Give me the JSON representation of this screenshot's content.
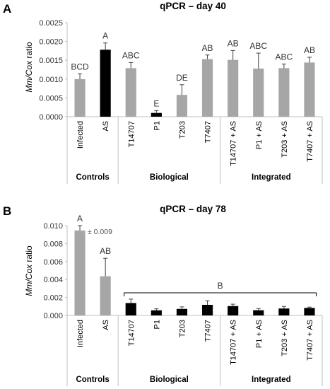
{
  "colors": {
    "gray": "#a6a6a6",
    "black": "#000000",
    "axis": "#bfbfbf",
    "err": "#404040"
  },
  "chart_data": [
    {
      "panel": "A",
      "type": "bar",
      "title": "qPCR – day 40",
      "ylabel_italic": "Mm/Cox",
      "ylabel_rest": " ratio",
      "ylim": [
        0,
        0.0025
      ],
      "yticks": [
        "0.0000",
        "0.0005",
        "0.0010",
        "0.0015",
        "0.0020",
        "0.0025"
      ],
      "categories": [
        "Infected",
        "AS",
        "T14707",
        "P1",
        "T203",
        "T7407",
        "T14707 + AS",
        "P1 + AS",
        "T203 + AS",
        "T7407 + AS"
      ],
      "values": [
        0.001,
        0.00178,
        0.00129,
        0.0001,
        0.00058,
        0.00153,
        0.00151,
        0.00128,
        0.00129,
        0.00144
      ],
      "errors": [
        0.00014,
        0.00018,
        0.00015,
        6e-05,
        0.00027,
        0.00011,
        0.00025,
        0.00041,
        0.00011,
        0.00014
      ],
      "bar_colors": [
        "gray",
        "black",
        "gray",
        "black",
        "gray",
        "gray",
        "gray",
        "gray",
        "gray",
        "gray"
      ],
      "letters": [
        "BCD",
        "A",
        "ABC",
        "E",
        "DE",
        "AB",
        "AB",
        "ABC",
        "ABC",
        "AB"
      ],
      "groups": [
        {
          "label": "Controls",
          "categories": 2
        },
        {
          "label": "Biological",
          "categories": 4
        },
        {
          "label": "Integrated",
          "categories": 4
        }
      ]
    },
    {
      "panel": "B",
      "type": "bar",
      "title": "qPCR – day 78",
      "ylabel_italic": "Mm/Cox",
      "ylabel_rest": " ratio",
      "ylim": [
        0,
        0.011
      ],
      "yticks": [
        "0.000",
        "0.002",
        "0.004",
        "0.006",
        "0.008",
        "0.010"
      ],
      "categories": [
        "Infected",
        "AS",
        "T14707",
        "P1",
        "T203",
        "T7407",
        "T14707 + AS",
        "P1 + AS",
        "T203 + AS",
        "T7407 + AS"
      ],
      "values": [
        0.0104,
        0.0048,
        0.00152,
        0.00063,
        0.0008,
        0.0013,
        0.00115,
        0.00064,
        0.00085,
        0.00092
      ],
      "errors": [
        0.0009,
        0.0022,
        0.00048,
        0.00018,
        0.00025,
        0.0005,
        0.00023,
        0.0002,
        0.00025,
        0.0001
      ],
      "bar_colors": [
        "gray",
        "gray",
        "black",
        "black",
        "black",
        "black",
        "black",
        "black",
        "black",
        "black"
      ],
      "letters": [
        "A",
        "AB",
        "",
        "",
        "",
        "",
        "",
        "",
        "",
        ""
      ],
      "bracket": {
        "letter": "B",
        "from": "T14707",
        "to": "T7407 + AS"
      },
      "annotation": "± 0.009",
      "groups": [
        {
          "label": "Controls",
          "categories": 2
        },
        {
          "label": "Biological",
          "categories": 4
        },
        {
          "label": "Integrated",
          "categories": 4
        }
      ]
    }
  ]
}
